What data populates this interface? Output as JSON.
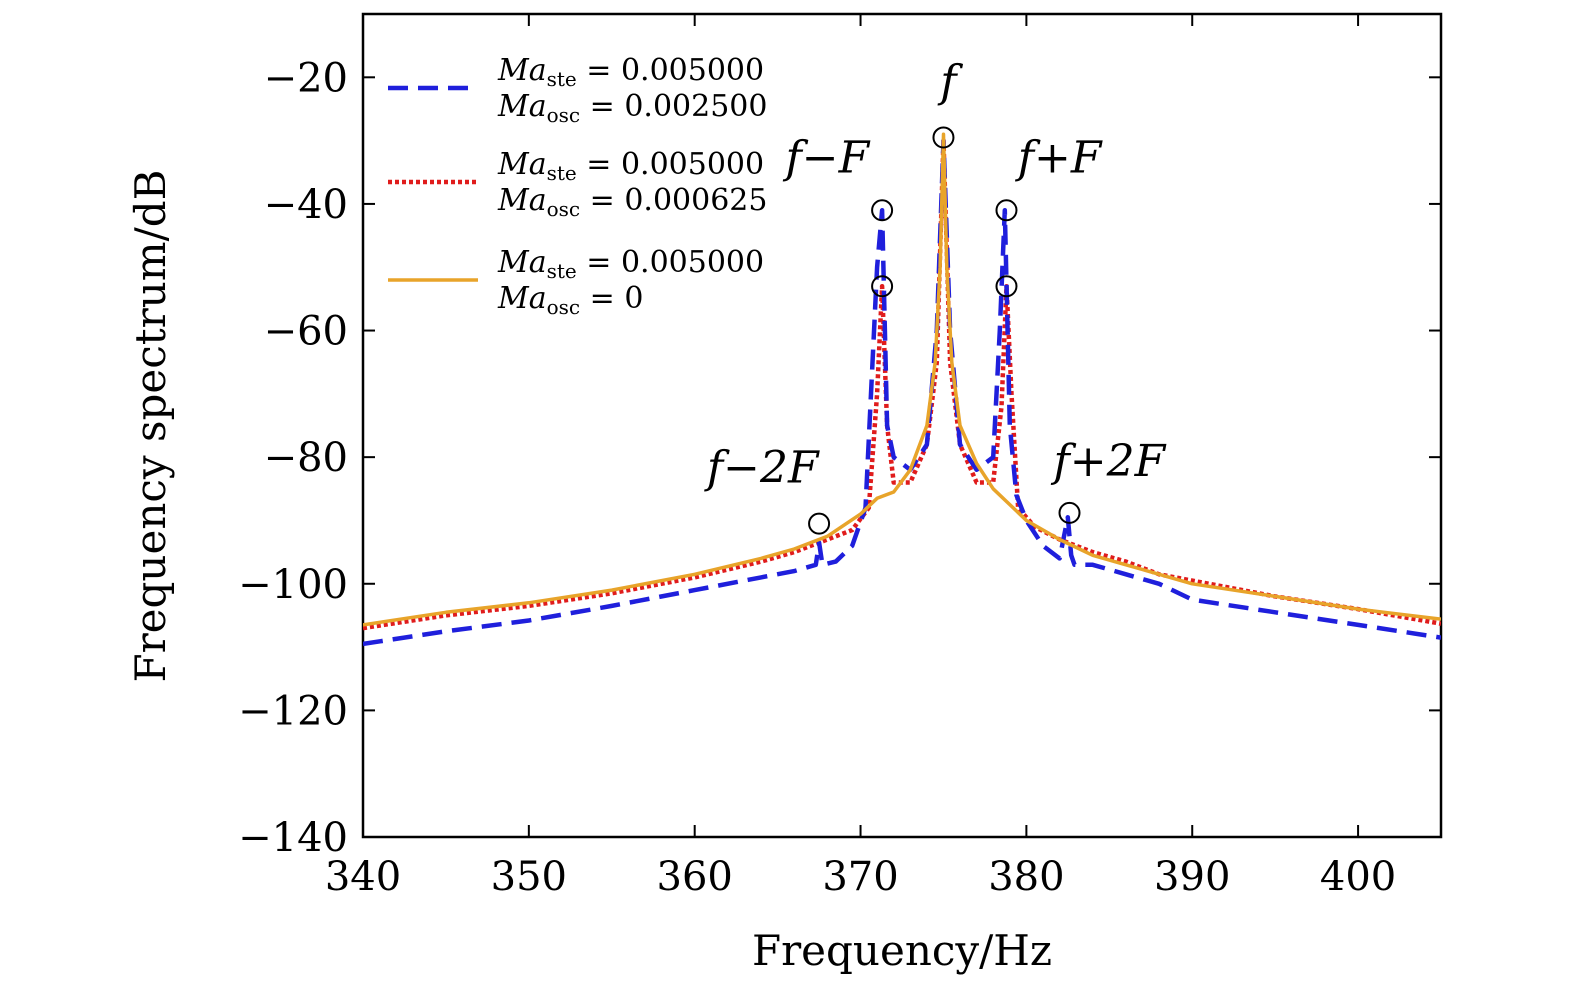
{
  "chart_data": {
    "type": "line",
    "xlabel": "Frequency/Hz",
    "ylabel": "Frequency spectrum/dB",
    "xlim": [
      340,
      405
    ],
    "ylim": [
      -140,
      -10
    ],
    "xticks": [
      340,
      350,
      360,
      370,
      380,
      390,
      400
    ],
    "yticks": [
      -20,
      -40,
      -60,
      -80,
      -100,
      -120,
      -140
    ],
    "ytick_labels": [
      "−20",
      "−40",
      "−60",
      "−80",
      "−100",
      "−120",
      "−140"
    ],
    "legend_position": "top-left",
    "series": [
      {
        "name": "Ma_ste = 0.005000, Ma_osc = 0.002500",
        "legend_line1": "Ma",
        "legend_sub1": "ste",
        "legend_val1": " = 0.005000",
        "legend_line2": "Ma",
        "legend_sub2": "osc",
        "legend_val2": " = 0.002500",
        "color": "#1f1fdc",
        "style": "dashed",
        "x": [
          340,
          345,
          350,
          355,
          360,
          364,
          366,
          367.3,
          367.5,
          367.7,
          368.5,
          369.5,
          370.3,
          371.0,
          371.3,
          371.6,
          372.0,
          373.0,
          374.0,
          374.6,
          375.0,
          375.4,
          376.0,
          377.0,
          378.0,
          378.4,
          378.7,
          379.0,
          379.4,
          380.0,
          381.0,
          382.0,
          382.5,
          382.7,
          382.9,
          384,
          386,
          388,
          390,
          395,
          400,
          405
        ],
        "y": [
          -109.5,
          -107.5,
          -105.8,
          -103.5,
          -101,
          -99,
          -98,
          -97,
          -93.5,
          -97,
          -96.5,
          -94,
          -88,
          -50,
          -41,
          -75,
          -80,
          -82,
          -78,
          -60,
          -30,
          -60,
          -78,
          -82,
          -80,
          -60,
          -41,
          -75,
          -86,
          -90,
          -94,
          -96,
          -89.5,
          -95.5,
          -97,
          -97,
          -98.5,
          -100,
          -102.5,
          -104.5,
          -106.5,
          -108.5
        ]
      },
      {
        "name": "Ma_ste = 0.005000, Ma_osc = 0.000625",
        "legend_line1": "Ma",
        "legend_sub1": "ste",
        "legend_val1": " = 0.005000",
        "legend_line2": "Ma",
        "legend_sub2": "osc",
        "legend_val2": " = 0.000625",
        "color": "#e01c1c",
        "style": "dotted",
        "x": [
          340,
          345,
          350,
          355,
          360,
          364,
          366,
          368,
          369.5,
          370.5,
          371.0,
          371.3,
          371.6,
          372.0,
          373.0,
          374.0,
          374.6,
          375.0,
          375.4,
          376.0,
          377.0,
          378.0,
          378.5,
          378.8,
          379.1,
          379.5,
          380.5,
          382,
          384,
          386,
          388,
          390,
          395,
          400,
          405
        ],
        "y": [
          -107,
          -105,
          -103.5,
          -101.5,
          -99,
          -96.5,
          -95,
          -93,
          -91.5,
          -88,
          -70,
          -53,
          -75,
          -84,
          -84,
          -78,
          -65,
          -30,
          -65,
          -78,
          -84,
          -84,
          -72,
          -53,
          -70,
          -88,
          -91,
          -93,
          -95,
          -96.5,
          -98.5,
          -99.5,
          -102,
          -104,
          -106.3
        ]
      },
      {
        "name": "Ma_ste = 0.005000, Ma_osc = 0",
        "legend_line1": "Ma",
        "legend_sub1": "ste",
        "legend_val1": " = 0.005000",
        "legend_line2": "Ma",
        "legend_sub2": "osc",
        "legend_val2": " = 0",
        "color": "#e8a42a",
        "style": "solid",
        "x": [
          340,
          345,
          350,
          355,
          360,
          364,
          366,
          368,
          370,
          371,
          372,
          373,
          374,
          374.5,
          374.8,
          375.0,
          375.2,
          375.5,
          376,
          377,
          378,
          379,
          380,
          382,
          384,
          386,
          388,
          390,
          395,
          400,
          405
        ],
        "y": [
          -106.5,
          -104.5,
          -103,
          -101,
          -98.5,
          -96,
          -94.5,
          -92.5,
          -89,
          -86.5,
          -85.5,
          -82,
          -75,
          -65,
          -50,
          -29,
          -50,
          -65,
          -75,
          -81,
          -85,
          -87.5,
          -90,
          -93,
          -95.5,
          -97,
          -98.5,
          -100,
          -102,
          -104,
          -105.6
        ]
      }
    ],
    "markers": [
      {
        "x": 375.0,
        "y": -29.5
      },
      {
        "x": 371.3,
        "y": -41
      },
      {
        "x": 378.8,
        "y": -41
      },
      {
        "x": 371.3,
        "y": -53
      },
      {
        "x": 378.8,
        "y": -53
      },
      {
        "x": 367.5,
        "y": -90.5
      },
      {
        "x": 382.6,
        "y": -88.8
      }
    ],
    "annotations": [
      {
        "text": "f",
        "x": 375.3,
        "y": -23
      },
      {
        "text": "f−F",
        "x": 368.0,
        "y": -35
      },
      {
        "text": "f+F",
        "x": 382.0,
        "y": -35
      },
      {
        "text": "f−2F",
        "x": 364.1,
        "y": -84
      },
      {
        "text": "f+2F",
        "x": 385.0,
        "y": -83
      }
    ]
  }
}
